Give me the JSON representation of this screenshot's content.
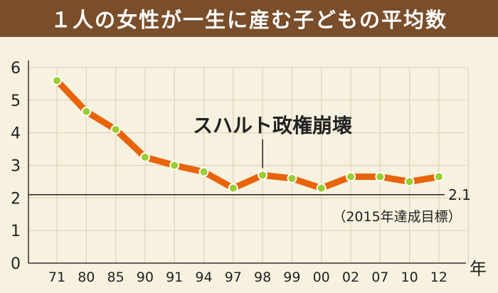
{
  "chart_data": {
    "type": "line",
    "title": "１人の女性が一生に産む子どもの平均数",
    "categories": [
      "71",
      "80",
      "85",
      "90",
      "91",
      "94",
      "97",
      "98",
      "99",
      "00",
      "02",
      "07",
      "10",
      "12"
    ],
    "series": [
      {
        "values": [
          5.6,
          4.65,
          4.1,
          3.25,
          3.0,
          2.8,
          2.3,
          2.7,
          2.6,
          2.3,
          2.65,
          2.65,
          2.5,
          2.65
        ]
      }
    ],
    "ylim": [
      0,
      6
    ],
    "yticks": [
      "0",
      "1",
      "2",
      "3",
      "4",
      "5",
      "6"
    ],
    "xunit": "年",
    "grid": true,
    "colors": {
      "line": "#e8630a",
      "marker": "#9acd32",
      "grid": "#dcd3bc",
      "title_bg": "#7a4e2a",
      "background": "#f7f1df"
    },
    "reference_line": {
      "value": 2.1,
      "label": "2.1",
      "note": "（2015年達成目標）"
    },
    "annotation": {
      "text": "スハルト政権崩壊",
      "category": "98"
    }
  }
}
